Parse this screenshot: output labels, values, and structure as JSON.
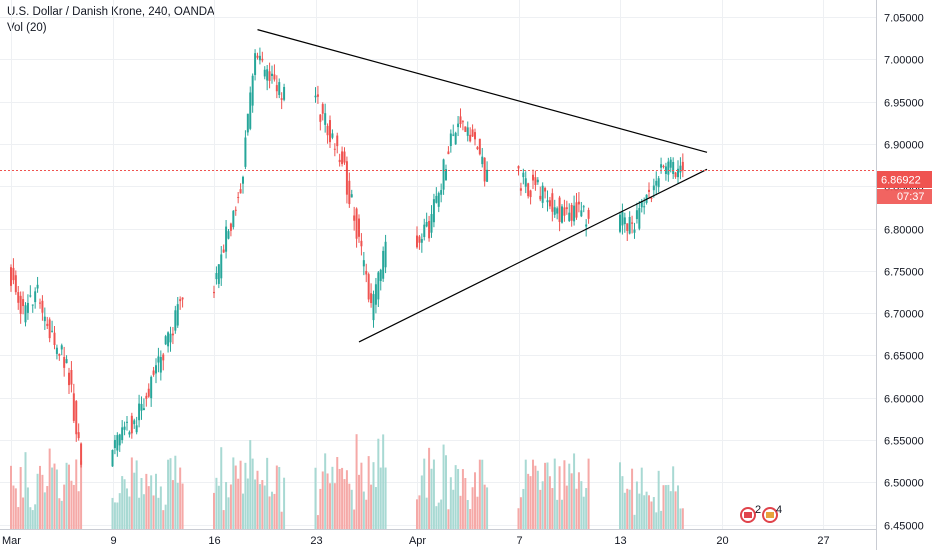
{
  "header": {
    "symbol_line": "U.S. Dollar / Danish Krone, 240, OANDA",
    "volume_line": "Vol (20)"
  },
  "price_badge": {
    "price": "6.86922",
    "countdown": "07:37"
  },
  "events": {
    "badge_1": "2",
    "badge_2": "4"
  },
  "colors": {
    "up": "#26a69a",
    "down": "#ef5350",
    "up_volume": "#a8d9d3",
    "down_volume": "#f5a9a7",
    "grid": "#eef0f3",
    "axis_text": "#131722",
    "price_line": "#ef5350",
    "trendline": "#000000",
    "event_flag": "#e0434b"
  },
  "chart_data": {
    "type": "candlestick",
    "ylim": [
      6.445,
      7.07
    ],
    "y_ticks": [
      7.05,
      7.0,
      6.95,
      6.9,
      6.85,
      6.8,
      6.75,
      6.7,
      6.65,
      6.6,
      6.55,
      6.5,
      6.45
    ],
    "y_tick_labels": [
      "7.05000",
      "7.00000",
      "6.95000",
      "6.90000",
      "6.85000",
      "6.80000",
      "6.75000",
      "6.70000",
      "6.65000",
      "6.60000",
      "6.55000",
      "6.50000",
      "6.45000"
    ],
    "x_axis": {
      "start": "2020-03-02",
      "end": "2020-04-30",
      "ticks": [
        {
          "date": "2020-03-02",
          "label": "Mar"
        },
        {
          "date": "2020-03-09",
          "label": "9"
        },
        {
          "date": "2020-03-16",
          "label": "16"
        },
        {
          "date": "2020-03-23",
          "label": "23"
        },
        {
          "date": "2020-03-30",
          "label": "Apr"
        },
        {
          "date": "2020-04-06",
          "label": "7"
        },
        {
          "date": "2020-04-13",
          "label": "13"
        },
        {
          "date": "2020-04-20",
          "label": "20"
        },
        {
          "date": "2020-04-27",
          "label": "27"
        }
      ]
    },
    "price_close_line": 6.86922,
    "trendlines": [
      {
        "from": {
          "date": "2020-03-19",
          "price": 7.035
        },
        "to": {
          "date": "2020-04-19",
          "price": 6.89
        }
      },
      {
        "from": {
          "date": "2020-03-26",
          "price": 6.666
        },
        "to": {
          "date": "2020-04-19",
          "price": 6.87
        }
      }
    ],
    "price_anchors": [
      [
        "2020-02-28",
        6.78
      ],
      [
        "2020-03-02",
        6.75
      ],
      [
        "2020-03-03",
        6.7
      ],
      [
        "2020-03-04",
        6.72
      ],
      [
        "2020-03-05",
        6.67
      ],
      [
        "2020-03-06",
        6.64
      ],
      [
        "2020-03-09",
        6.53
      ],
      [
        "2020-03-10",
        6.56
      ],
      [
        "2020-03-11",
        6.58
      ],
      [
        "2020-03-12",
        6.63
      ],
      [
        "2020-03-13",
        6.67
      ],
      [
        "2020-03-16",
        6.72
      ],
      [
        "2020-03-17",
        6.79
      ],
      [
        "2020-03-18",
        6.85
      ],
      [
        "2020-03-19",
        7.0
      ],
      [
        "2020-03-20",
        6.98
      ],
      [
        "2020-03-23",
        6.96
      ],
      [
        "2020-03-24",
        6.92
      ],
      [
        "2020-03-25",
        6.88
      ],
      [
        "2020-03-26",
        6.8
      ],
      [
        "2020-03-27",
        6.7
      ],
      [
        "2020-03-30",
        6.78
      ],
      [
        "2020-03-31",
        6.8
      ],
      [
        "2020-04-01",
        6.87
      ],
      [
        "2020-04-02",
        6.93
      ],
      [
        "2020-04-03",
        6.91
      ],
      [
        "2020-04-06",
        6.86
      ],
      [
        "2020-04-07",
        6.85
      ],
      [
        "2020-04-08",
        6.84
      ],
      [
        "2020-04-09",
        6.82
      ],
      [
        "2020-04-10",
        6.82
      ],
      [
        "2020-04-13",
        6.81
      ],
      [
        "2020-04-14",
        6.8
      ],
      [
        "2020-04-15",
        6.84
      ],
      [
        "2020-04-16",
        6.865
      ],
      [
        "2020-04-17",
        6.87
      ]
    ]
  }
}
